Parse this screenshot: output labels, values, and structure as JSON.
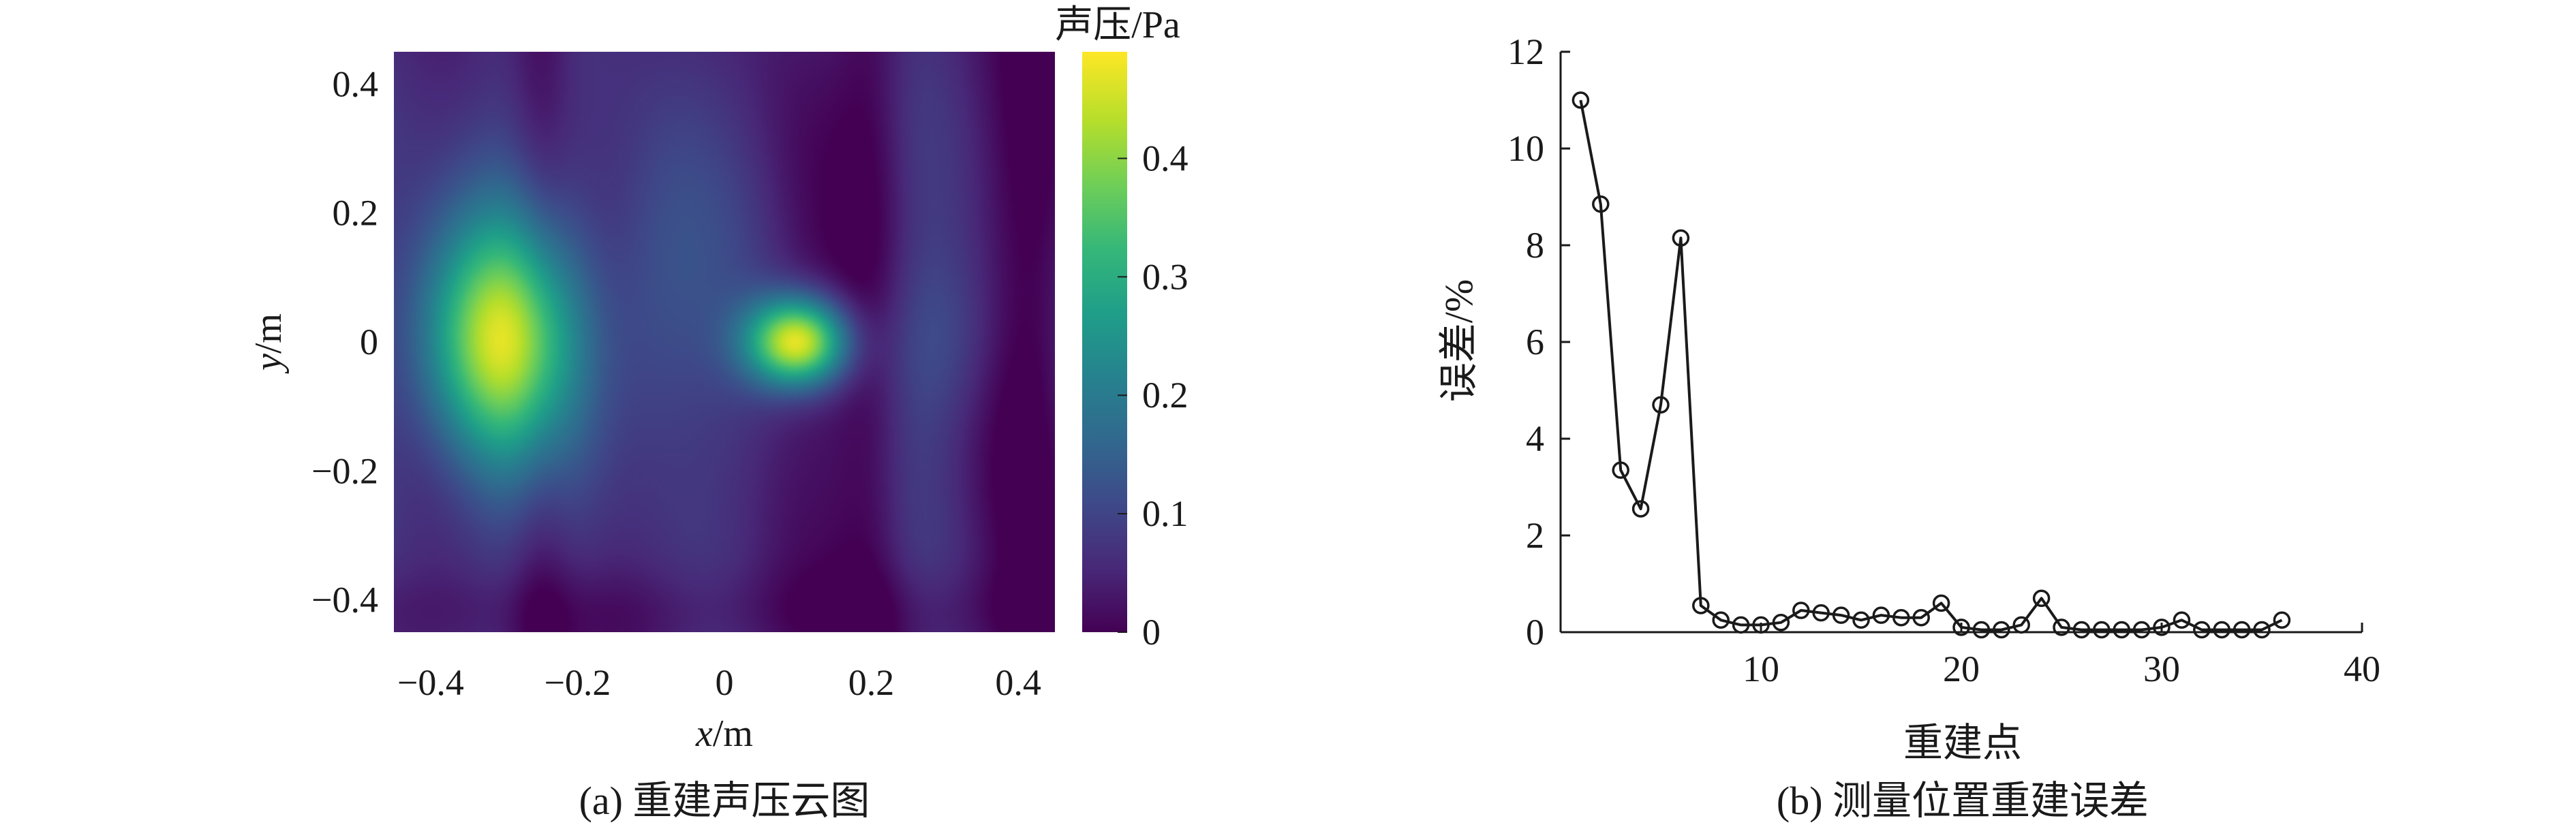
{
  "chart_data": [
    {
      "type": "heatmap",
      "title": "(a) 重建声压云图",
      "xlabel_var": "x",
      "xlabel_unit": "/m",
      "ylabel_var": "y",
      "ylabel_unit": "/m",
      "xlim": [
        -0.45,
        0.45
      ],
      "ylim": [
        -0.45,
        0.45
      ],
      "xticks": [
        -0.4,
        -0.2,
        0,
        0.2,
        0.4
      ],
      "yticks": [
        -0.4,
        -0.2,
        0,
        0.2,
        0.4
      ],
      "xtick_labels": [
        "−0.4",
        "−0.2",
        "0",
        "0.2",
        "0.4"
      ],
      "ytick_labels": [
        "−0.4",
        "−0.2",
        "0",
        "0.2",
        "0.4"
      ],
      "colorbar": {
        "label": "声压/Pa",
        "range": [
          0,
          0.49
        ],
        "ticks": [
          0,
          0.1,
          0.2,
          0.3,
          0.4
        ],
        "tick_labels": [
          "0",
          "0.1",
          "0.2",
          "0.3",
          "0.4"
        ],
        "colormap": [
          "#440154",
          "#482878",
          "#3e4989",
          "#31688e",
          "#26828e",
          "#1f9e89",
          "#35b779",
          "#6ece58",
          "#b5de2b",
          "#fde725"
        ]
      },
      "sources": [
        {
          "x": -0.31,
          "y": 0.0,
          "peak": 0.4
        },
        {
          "x": 0.1,
          "y": 0.0,
          "peak": 0.47
        }
      ]
    },
    {
      "type": "line",
      "title": "(b) 测量位置重建误差",
      "xlabel": "重建点",
      "ylabel": "误差/%",
      "xlim": [
        0,
        40
      ],
      "ylim": [
        0,
        12
      ],
      "xticks": [
        10,
        20,
        30,
        40
      ],
      "yticks": [
        0,
        2,
        4,
        6,
        8,
        10,
        12
      ],
      "series": [
        {
          "name": "误差",
          "marker": "circle",
          "color": "#1a1a1a",
          "x": [
            1,
            2,
            3,
            4,
            5,
            6,
            7,
            8,
            9,
            10,
            11,
            12,
            13,
            14,
            15,
            16,
            17,
            18,
            19,
            20,
            21,
            22,
            23,
            24,
            25,
            26,
            27,
            28,
            29,
            30,
            31,
            32,
            33,
            34,
            35,
            36
          ],
          "y": [
            11.0,
            8.85,
            3.35,
            2.55,
            4.7,
            8.15,
            0.55,
            0.25,
            0.15,
            0.15,
            0.2,
            0.45,
            0.4,
            0.35,
            0.25,
            0.35,
            0.3,
            0.3,
            0.6,
            0.1,
            0.05,
            0.05,
            0.15,
            0.7,
            0.1,
            0.05,
            0.05,
            0.05,
            0.05,
            0.1,
            0.25,
            0.05,
            0.05,
            0.05,
            0.05,
            0.25
          ]
        }
      ]
    }
  ]
}
